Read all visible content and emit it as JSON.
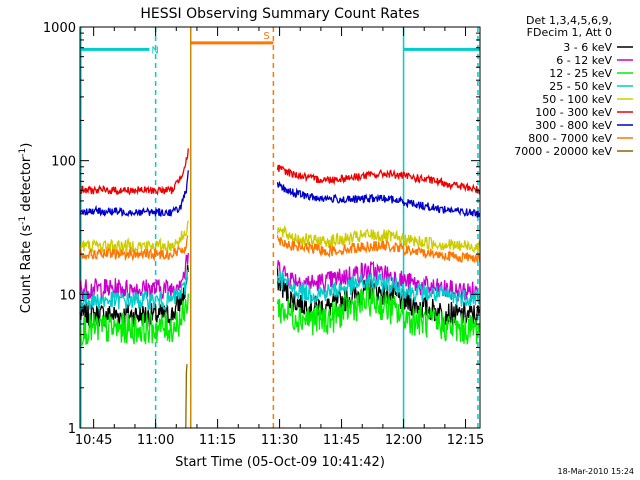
{
  "chart_data": {
    "type": "line",
    "title": "HESSI Observing Summary Count Rates",
    "xlabel": "Start Time (05-Oct-09 10:41:42)",
    "ylabel": "Count Rate (s⁻¹ detector⁻¹)",
    "ylabel_parts": {
      "main": "Count Rate (s",
      "sup1": "-1",
      "mid": " detector",
      "sup2": "-1",
      "end": ")"
    },
    "yscale": "log",
    "ylim": [
      1,
      1000
    ],
    "xlim": [
      41.7,
      138.5
    ],
    "x_units": "minutes after 10:00 UT",
    "yticks": [
      {
        "v": 1,
        "label": "1"
      },
      {
        "v": 10,
        "label": "10"
      },
      {
        "v": 100,
        "label": "100"
      },
      {
        "v": 1000,
        "label": "1000"
      }
    ],
    "xticks": [
      {
        "v": 45,
        "label": "10:45"
      },
      {
        "v": 60,
        "label": "11:00"
      },
      {
        "v": 75,
        "label": "11:15"
      },
      {
        "v": 90,
        "label": "11:30"
      },
      {
        "v": 105,
        "label": "11:45"
      },
      {
        "v": 120,
        "label": "12:00"
      },
      {
        "v": 135,
        "label": "12:15"
      }
    ],
    "legend_header": [
      "Det 1,3,4,5,6,9,",
      "FDecim 1, Att 0"
    ],
    "series": [
      {
        "name": "3 - 6 keV",
        "color": "#000000",
        "noise": 0.09,
        "pre": [
          [
            41.7,
            7
          ],
          [
            64,
            7
          ],
          [
            67,
            10
          ],
          [
            67.9,
            15
          ]
        ],
        "post": [
          [
            89.5,
            13
          ],
          [
            93,
            9
          ],
          [
            98,
            8
          ],
          [
            102,
            8
          ],
          [
            107,
            9.5
          ],
          [
            112,
            11
          ],
          [
            116,
            10
          ],
          [
            122,
            8.5
          ],
          [
            128,
            7.5
          ],
          [
            133,
            7
          ],
          [
            138.5,
            7
          ]
        ]
      },
      {
        "name": "6 - 12 keV",
        "color": "#cc00cc",
        "noise": 0.08,
        "pre": [
          [
            41.7,
            11
          ],
          [
            64,
            11
          ],
          [
            67,
            14
          ],
          [
            67.9,
            20
          ]
        ],
        "post": [
          [
            89.5,
            16
          ],
          [
            93,
            13
          ],
          [
            98,
            12
          ],
          [
            102,
            12.5
          ],
          [
            107,
            14
          ],
          [
            112,
            15
          ],
          [
            116,
            14
          ],
          [
            122,
            12
          ],
          [
            128,
            11
          ],
          [
            133,
            10.5
          ],
          [
            138.5,
            10.5
          ]
        ]
      },
      {
        "name": "12 - 25 keV",
        "color": "#00ee00",
        "noise": 0.12,
        "pre": [
          [
            41.7,
            5.5
          ],
          [
            64,
            5.6
          ],
          [
            67,
            7
          ],
          [
            67.9,
            10
          ]
        ],
        "post": [
          [
            89.5,
            8
          ],
          [
            93,
            7
          ],
          [
            98,
            6.5
          ],
          [
            102,
            6.5
          ],
          [
            107,
            8
          ],
          [
            112,
            9
          ],
          [
            116,
            8
          ],
          [
            122,
            6.5
          ],
          [
            128,
            6
          ],
          [
            133,
            5.5
          ],
          [
            138.5,
            5.5
          ]
        ]
      },
      {
        "name": "25 - 50 keV",
        "color": "#00cccc",
        "noise": 0.07,
        "pre": [
          [
            41.7,
            9
          ],
          [
            64,
            9
          ],
          [
            67,
            11
          ],
          [
            67.9,
            15
          ]
        ],
        "post": [
          [
            89.5,
            14
          ],
          [
            93,
            11
          ],
          [
            98,
            10
          ],
          [
            102,
            10.5
          ],
          [
            107,
            11.5
          ],
          [
            112,
            12.5
          ],
          [
            116,
            12
          ],
          [
            122,
            10.5
          ],
          [
            128,
            10
          ],
          [
            133,
            9.5
          ],
          [
            138.5,
            9.5
          ]
        ]
      },
      {
        "name": "50 - 100 keV",
        "color": "#cccc00",
        "noise": 0.05,
        "pre": [
          [
            41.7,
            23
          ],
          [
            64,
            23
          ],
          [
            67,
            28
          ],
          [
            67.9,
            35
          ]
        ],
        "post": [
          [
            89.5,
            30
          ],
          [
            93,
            27
          ],
          [
            98,
            25
          ],
          [
            102,
            25
          ],
          [
            107,
            26
          ],
          [
            112,
            28
          ],
          [
            116,
            27
          ],
          [
            122,
            25
          ],
          [
            128,
            24
          ],
          [
            133,
            23
          ],
          [
            138.5,
            23
          ]
        ]
      },
      {
        "name": "100 - 300 keV",
        "color": "#ee0000",
        "noise": 0.03,
        "pre": [
          [
            41.7,
            60
          ],
          [
            64,
            60
          ],
          [
            66,
            75
          ],
          [
            67.5,
            100
          ],
          [
            67.9,
            120
          ]
        ],
        "post": [
          [
            89.5,
            88
          ],
          [
            93,
            80
          ],
          [
            98,
            73
          ],
          [
            102,
            72
          ],
          [
            107,
            75
          ],
          [
            112,
            78
          ],
          [
            116,
            80
          ],
          [
            122,
            75
          ],
          [
            128,
            70
          ],
          [
            133,
            65
          ],
          [
            138.5,
            60
          ]
        ]
      },
      {
        "name": "300 - 800 keV",
        "color": "#0000cc",
        "noise": 0.03,
        "pre": [
          [
            41.7,
            42
          ],
          [
            64,
            41
          ],
          [
            66,
            45
          ],
          [
            67.5,
            60
          ],
          [
            67.9,
            80
          ]
        ],
        "post": [
          [
            89.5,
            65
          ],
          [
            93,
            58
          ],
          [
            98,
            53
          ],
          [
            102,
            52
          ],
          [
            107,
            51
          ],
          [
            112,
            52
          ],
          [
            116,
            52
          ],
          [
            122,
            48
          ],
          [
            128,
            44
          ],
          [
            133,
            42
          ],
          [
            138.5,
            40
          ]
        ]
      },
      {
        "name": "800 - 7000 keV",
        "color": "#ff7700",
        "noise": 0.04,
        "pre": [
          [
            41.7,
            20
          ],
          [
            64,
            20
          ],
          [
            67,
            22
          ],
          [
            67.9,
            28
          ]
        ],
        "post": [
          [
            89.5,
            26
          ],
          [
            93,
            23
          ],
          [
            98,
            22
          ],
          [
            102,
            21
          ],
          [
            107,
            22
          ],
          [
            112,
            23
          ],
          [
            116,
            23
          ],
          [
            122,
            21
          ],
          [
            128,
            20
          ],
          [
            133,
            19
          ],
          [
            138.5,
            19
          ]
        ]
      },
      {
        "name": "7000 - 20000 keV",
        "color": "#8b6400",
        "noise": 0.0,
        "pre": [
          [
            67.3,
            1
          ],
          [
            67.4,
            2.5
          ],
          [
            67.6,
            3
          ]
        ],
        "post": []
      }
    ],
    "markers": [
      {
        "type": "level",
        "label": "N",
        "color": "#00cccc",
        "x1": 41.7,
        "x2": 58.5,
        "y": 680
      },
      {
        "type": "level",
        "label": "",
        "color": "#00cccc",
        "x1": 120,
        "x2": 138.5,
        "y": 680
      },
      {
        "type": "level",
        "label": "S",
        "color": "#ff7700",
        "x1": 68.5,
        "x2": 88.5,
        "y": 760
      },
      {
        "type": "solid",
        "color": "#00cccc",
        "x": 41.9
      },
      {
        "type": "dashed",
        "color": "#00cccc",
        "x": 60
      },
      {
        "type": "solid",
        "color": "#cc8800",
        "x": 68.5
      },
      {
        "type": "dashed",
        "color": "#ff7700",
        "x": 88.5
      },
      {
        "type": "solid",
        "color": "#00cccc",
        "x": 120
      },
      {
        "type": "dashed",
        "color": "#00cccc",
        "x": 138
      }
    ]
  },
  "timestamp": "18-Mar-2010 15:24"
}
